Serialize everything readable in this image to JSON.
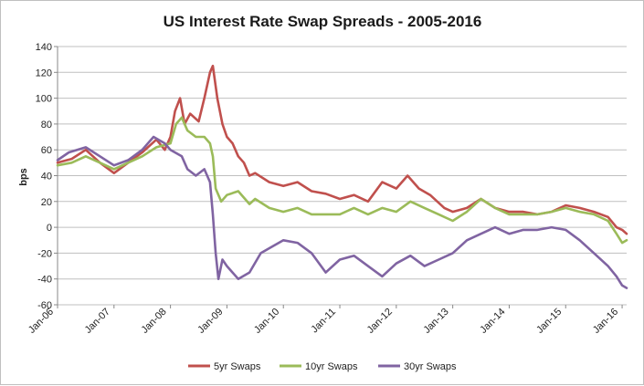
{
  "chart_data": {
    "type": "line",
    "title": "US Interest Rate Swap Spreads - 2005-2016",
    "ylabel": "bps",
    "xlabel": "",
    "ylim": [
      -60,
      140
    ],
    "yticks": [
      -60,
      -40,
      -20,
      0,
      20,
      40,
      60,
      80,
      100,
      120,
      140
    ],
    "xlim": [
      2006.0,
      2016.08
    ],
    "xticks": [
      {
        "label": "Jan-06",
        "value": 2006
      },
      {
        "label": "Jan-07",
        "value": 2007
      },
      {
        "label": "Jan-08",
        "value": 2008
      },
      {
        "label": "Jan-09",
        "value": 2009
      },
      {
        "label": "Jan-10",
        "value": 2010
      },
      {
        "label": "Jan-11",
        "value": 2011
      },
      {
        "label": "Jan-12",
        "value": 2012
      },
      {
        "label": "Jan-13",
        "value": 2013
      },
      {
        "label": "Jan-14",
        "value": 2014
      },
      {
        "label": "Jan-15",
        "value": 2015
      },
      {
        "label": "Jan-16",
        "value": 2016
      }
    ],
    "grid": "horizontal",
    "legend": "bottom",
    "series": [
      {
        "name": "5yr Swaps",
        "color": "#c0504d",
        "points": [
          [
            2006.0,
            50
          ],
          [
            2006.25,
            53
          ],
          [
            2006.5,
            60
          ],
          [
            2006.75,
            50
          ],
          [
            2007.0,
            42
          ],
          [
            2007.25,
            50
          ],
          [
            2007.5,
            58
          ],
          [
            2007.75,
            68
          ],
          [
            2007.9,
            60
          ],
          [
            2008.0,
            70
          ],
          [
            2008.08,
            90
          ],
          [
            2008.17,
            100
          ],
          [
            2008.25,
            80
          ],
          [
            2008.35,
            88
          ],
          [
            2008.5,
            82
          ],
          [
            2008.6,
            100
          ],
          [
            2008.7,
            120
          ],
          [
            2008.75,
            125
          ],
          [
            2008.83,
            100
          ],
          [
            2008.92,
            80
          ],
          [
            2009.0,
            70
          ],
          [
            2009.1,
            65
          ],
          [
            2009.2,
            55
          ],
          [
            2009.3,
            50
          ],
          [
            2009.4,
            40
          ],
          [
            2009.5,
            42
          ],
          [
            2009.75,
            35
          ],
          [
            2010.0,
            32
          ],
          [
            2010.25,
            35
          ],
          [
            2010.5,
            28
          ],
          [
            2010.75,
            26
          ],
          [
            2011.0,
            22
          ],
          [
            2011.25,
            25
          ],
          [
            2011.5,
            20
          ],
          [
            2011.75,
            35
          ],
          [
            2012.0,
            30
          ],
          [
            2012.2,
            40
          ],
          [
            2012.4,
            30
          ],
          [
            2012.6,
            25
          ],
          [
            2012.85,
            15
          ],
          [
            2013.0,
            12
          ],
          [
            2013.25,
            15
          ],
          [
            2013.5,
            22
          ],
          [
            2013.75,
            15
          ],
          [
            2014.0,
            12
          ],
          [
            2014.25,
            12
          ],
          [
            2014.5,
            10
          ],
          [
            2014.75,
            12
          ],
          [
            2015.0,
            17
          ],
          [
            2015.25,
            15
          ],
          [
            2015.5,
            12
          ],
          [
            2015.75,
            8
          ],
          [
            2015.9,
            0
          ],
          [
            2016.0,
            -2
          ],
          [
            2016.08,
            -5
          ]
        ]
      },
      {
        "name": "10yr Swaps",
        "color": "#9bbb59",
        "points": [
          [
            2006.0,
            48
          ],
          [
            2006.25,
            50
          ],
          [
            2006.5,
            55
          ],
          [
            2006.75,
            50
          ],
          [
            2007.0,
            45
          ],
          [
            2007.25,
            50
          ],
          [
            2007.5,
            55
          ],
          [
            2007.75,
            62
          ],
          [
            2008.0,
            65
          ],
          [
            2008.1,
            80
          ],
          [
            2008.2,
            85
          ],
          [
            2008.3,
            75
          ],
          [
            2008.45,
            70
          ],
          [
            2008.6,
            70
          ],
          [
            2008.7,
            65
          ],
          [
            2008.75,
            55
          ],
          [
            2008.8,
            30
          ],
          [
            2008.9,
            20
          ],
          [
            2009.0,
            25
          ],
          [
            2009.2,
            28
          ],
          [
            2009.4,
            18
          ],
          [
            2009.5,
            22
          ],
          [
            2009.75,
            15
          ],
          [
            2010.0,
            12
          ],
          [
            2010.25,
            15
          ],
          [
            2010.5,
            10
          ],
          [
            2010.75,
            10
          ],
          [
            2011.0,
            10
          ],
          [
            2011.25,
            15
          ],
          [
            2011.5,
            10
          ],
          [
            2011.75,
            15
          ],
          [
            2012.0,
            12
          ],
          [
            2012.25,
            20
          ],
          [
            2012.5,
            15
          ],
          [
            2012.75,
            10
          ],
          [
            2013.0,
            5
          ],
          [
            2013.25,
            12
          ],
          [
            2013.5,
            22
          ],
          [
            2013.75,
            15
          ],
          [
            2014.0,
            10
          ],
          [
            2014.25,
            10
          ],
          [
            2014.5,
            10
          ],
          [
            2014.75,
            12
          ],
          [
            2015.0,
            15
          ],
          [
            2015.25,
            12
          ],
          [
            2015.5,
            10
          ],
          [
            2015.75,
            5
          ],
          [
            2015.9,
            -5
          ],
          [
            2016.0,
            -12
          ],
          [
            2016.08,
            -10
          ]
        ]
      },
      {
        "name": "30yr Swaps",
        "color": "#8064a2",
        "points": [
          [
            2006.0,
            52
          ],
          [
            2006.2,
            58
          ],
          [
            2006.5,
            62
          ],
          [
            2006.75,
            55
          ],
          [
            2007.0,
            48
          ],
          [
            2007.25,
            52
          ],
          [
            2007.5,
            60
          ],
          [
            2007.7,
            70
          ],
          [
            2007.9,
            65
          ],
          [
            2008.0,
            60
          ],
          [
            2008.2,
            55
          ],
          [
            2008.3,
            45
          ],
          [
            2008.45,
            40
          ],
          [
            2008.6,
            45
          ],
          [
            2008.7,
            35
          ],
          [
            2008.75,
            10
          ],
          [
            2008.8,
            -20
          ],
          [
            2008.85,
            -40
          ],
          [
            2008.92,
            -25
          ],
          [
            2009.0,
            -30
          ],
          [
            2009.2,
            -40
          ],
          [
            2009.4,
            -35
          ],
          [
            2009.6,
            -20
          ],
          [
            2009.8,
            -15
          ],
          [
            2010.0,
            -10
          ],
          [
            2010.25,
            -12
          ],
          [
            2010.5,
            -20
          ],
          [
            2010.75,
            -35
          ],
          [
            2011.0,
            -25
          ],
          [
            2011.25,
            -22
          ],
          [
            2011.5,
            -30
          ],
          [
            2011.75,
            -38
          ],
          [
            2012.0,
            -28
          ],
          [
            2012.25,
            -22
          ],
          [
            2012.5,
            -30
          ],
          [
            2012.75,
            -25
          ],
          [
            2013.0,
            -20
          ],
          [
            2013.25,
            -10
          ],
          [
            2013.5,
            -5
          ],
          [
            2013.75,
            0
          ],
          [
            2014.0,
            -5
          ],
          [
            2014.25,
            -2
          ],
          [
            2014.5,
            -2
          ],
          [
            2014.75,
            0
          ],
          [
            2015.0,
            -2
          ],
          [
            2015.25,
            -10
          ],
          [
            2015.5,
            -20
          ],
          [
            2015.75,
            -30
          ],
          [
            2015.9,
            -38
          ],
          [
            2016.0,
            -45
          ],
          [
            2016.08,
            -47
          ]
        ]
      }
    ]
  }
}
